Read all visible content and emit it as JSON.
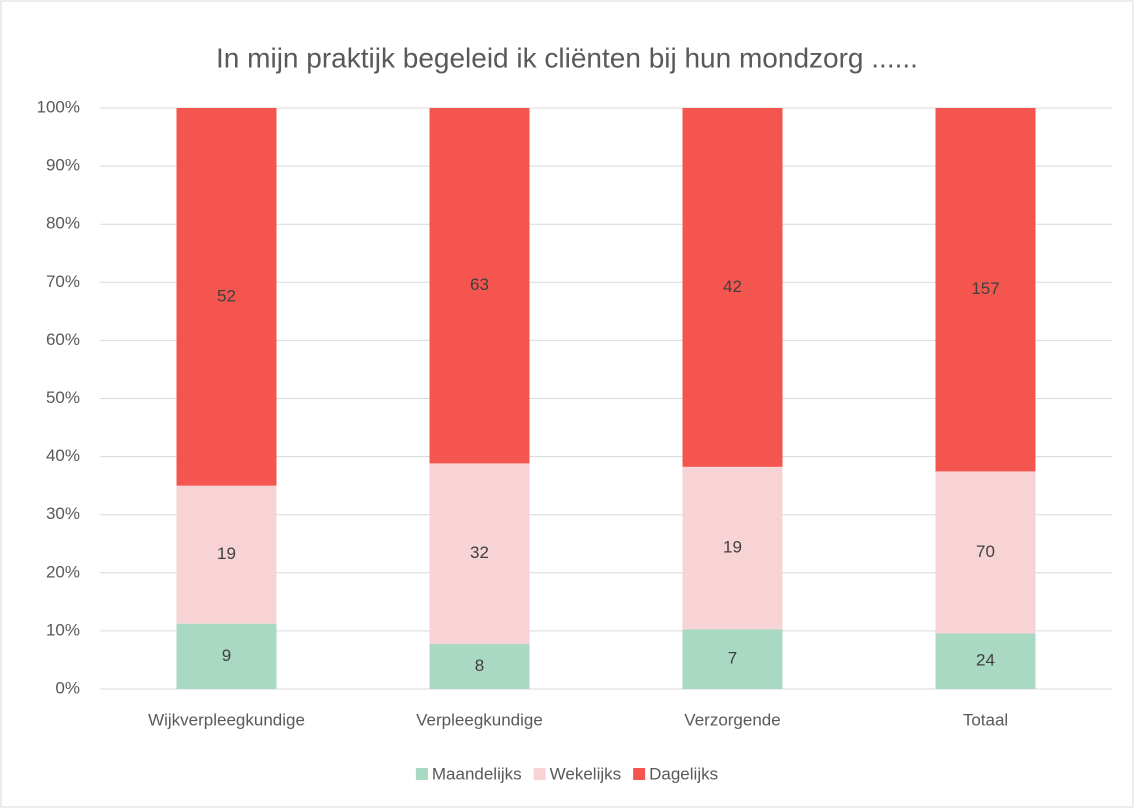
{
  "chart_data": {
    "type": "bar",
    "stacking": "percent",
    "title": "In mijn praktijk begeleid ik cliënten bij hun mondzorg ......",
    "categories": [
      "Wijkverpleegkundige",
      "Verpleegkundige",
      "Verzorgende",
      "Totaal"
    ],
    "series": [
      {
        "name": "Maandelijks",
        "color": "#a9d8c3",
        "values": [
          9,
          8,
          7,
          24
        ]
      },
      {
        "name": "Wekelijks",
        "color": "#f7d3d5",
        "values": [
          19,
          32,
          19,
          70
        ]
      },
      {
        "name": "Dagelijks",
        "color": "#f4554e",
        "values": [
          52,
          63,
          42,
          157
        ]
      }
    ],
    "ylim": [
      0,
      100
    ],
    "yticks": [
      {
        "value": 0,
        "label": "0%"
      },
      {
        "value": 10,
        "label": "10%"
      },
      {
        "value": 20,
        "label": "20%"
      },
      {
        "value": 30,
        "label": "30%"
      },
      {
        "value": 40,
        "label": "40%"
      },
      {
        "value": 50,
        "label": "50%"
      },
      {
        "value": 60,
        "label": "60%"
      },
      {
        "value": 70,
        "label": "70%"
      },
      {
        "value": 80,
        "label": "80%"
      },
      {
        "value": 90,
        "label": "90%"
      },
      {
        "value": 100,
        "label": "100%"
      }
    ],
    "grid": true,
    "legend": "bottom"
  }
}
